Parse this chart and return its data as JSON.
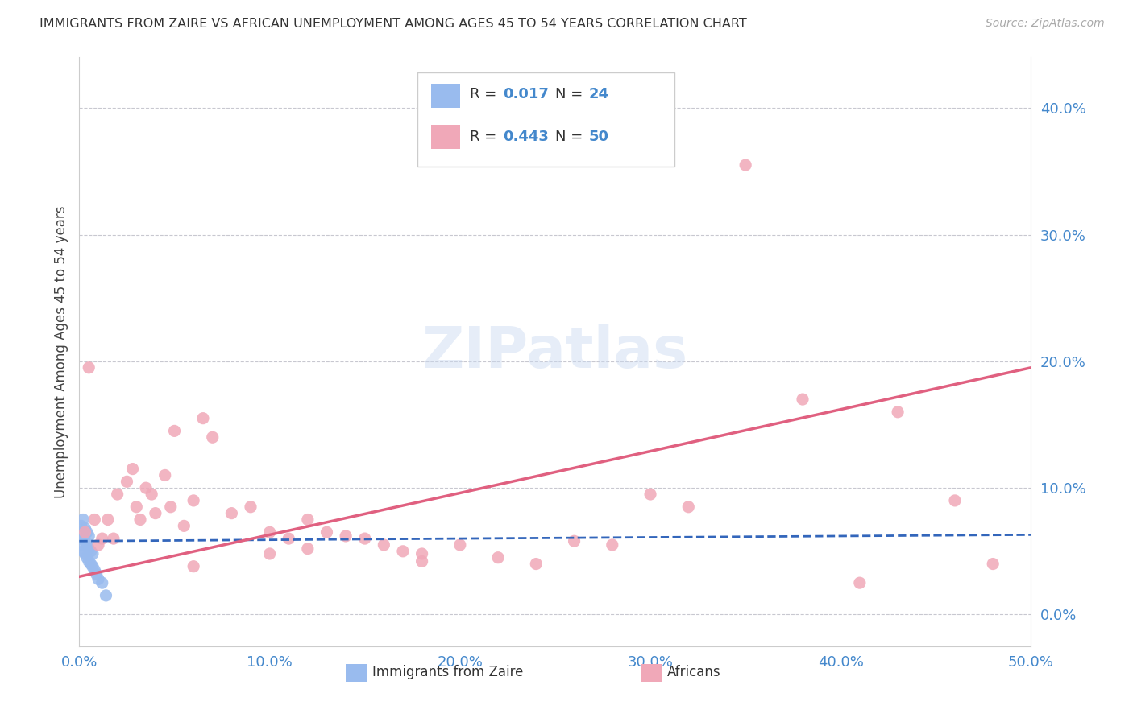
{
  "title": "IMMIGRANTS FROM ZAIRE VS AFRICAN UNEMPLOYMENT AMONG AGES 45 TO 54 YEARS CORRELATION CHART",
  "source": "Source: ZipAtlas.com",
  "ylabel": "Unemployment Among Ages 45 to 54 years",
  "xlim": [
    0.0,
    0.5
  ],
  "ylim": [
    -0.025,
    0.44
  ],
  "xticks": [
    0.0,
    0.1,
    0.2,
    0.3,
    0.4,
    0.5
  ],
  "xticklabels": [
    "0.0%",
    "10.0%",
    "20.0%",
    "30.0%",
    "40.0%",
    "50.0%"
  ],
  "yticks": [
    0.0,
    0.1,
    0.2,
    0.3,
    0.4
  ],
  "yticklabels": [
    "0.0%",
    "10.0%",
    "20.0%",
    "30.0%",
    "40.0%"
  ],
  "grid_color": "#c8c8d0",
  "background_color": "#ffffff",
  "series1_color": "#99bbee",
  "series2_color": "#f0a8b8",
  "line1_color": "#3366bb",
  "line2_color": "#e06080",
  "series1_x": [
    0.001,
    0.001,
    0.001,
    0.002,
    0.002,
    0.002,
    0.003,
    0.003,
    0.003,
    0.004,
    0.004,
    0.004,
    0.005,
    0.005,
    0.005,
    0.006,
    0.006,
    0.007,
    0.007,
    0.008,
    0.009,
    0.01,
    0.012,
    0.014
  ],
  "series1_y": [
    0.055,
    0.065,
    0.07,
    0.05,
    0.06,
    0.075,
    0.048,
    0.058,
    0.068,
    0.045,
    0.055,
    0.065,
    0.042,
    0.052,
    0.062,
    0.04,
    0.05,
    0.038,
    0.048,
    0.035,
    0.032,
    0.028,
    0.025,
    0.015
  ],
  "series2_x": [
    0.003,
    0.005,
    0.008,
    0.01,
    0.012,
    0.015,
    0.018,
    0.02,
    0.025,
    0.028,
    0.03,
    0.032,
    0.035,
    0.038,
    0.04,
    0.045,
    0.048,
    0.05,
    0.055,
    0.06,
    0.065,
    0.07,
    0.08,
    0.09,
    0.1,
    0.11,
    0.12,
    0.13,
    0.15,
    0.16,
    0.17,
    0.18,
    0.2,
    0.22,
    0.24,
    0.26,
    0.28,
    0.3,
    0.32,
    0.35,
    0.38,
    0.41,
    0.43,
    0.46,
    0.48,
    0.12,
    0.14,
    0.18,
    0.1,
    0.06
  ],
  "series2_y": [
    0.065,
    0.195,
    0.075,
    0.055,
    0.06,
    0.075,
    0.06,
    0.095,
    0.105,
    0.115,
    0.085,
    0.075,
    0.1,
    0.095,
    0.08,
    0.11,
    0.085,
    0.145,
    0.07,
    0.09,
    0.155,
    0.14,
    0.08,
    0.085,
    0.065,
    0.06,
    0.075,
    0.065,
    0.06,
    0.055,
    0.05,
    0.048,
    0.055,
    0.045,
    0.04,
    0.058,
    0.055,
    0.095,
    0.085,
    0.355,
    0.17,
    0.025,
    0.16,
    0.09,
    0.04,
    0.052,
    0.062,
    0.042,
    0.048,
    0.038
  ],
  "line1_x0": 0.0,
  "line1_x1": 0.5,
  "line1_y0": 0.058,
  "line1_y1": 0.063,
  "line2_x0": 0.0,
  "line2_x1": 0.5,
  "line2_y0": 0.03,
  "line2_y1": 0.195
}
